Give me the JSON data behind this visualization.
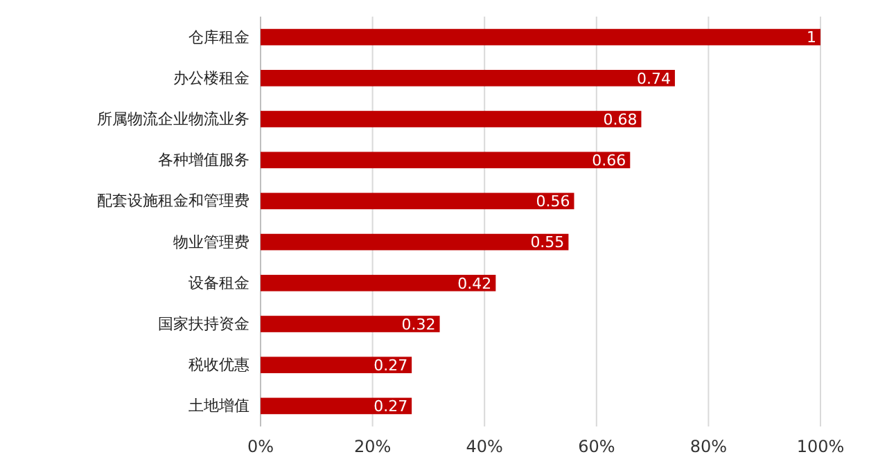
{
  "chart_data": {
    "type": "bar",
    "orientation": "horizontal",
    "categories": [
      "仓库租金",
      "办公楼租金",
      "所属物流企业物流业务",
      "各种增值服务",
      "配套设施租金和管理费",
      "物业管理费",
      "设备租金",
      "国家扶持资金",
      "税收优惠",
      "土地增值"
    ],
    "values": [
      1,
      0.74,
      0.68,
      0.66,
      0.56,
      0.55,
      0.42,
      0.32,
      0.27,
      0.27
    ],
    "color": "#c00000",
    "xlim": [
      0,
      1
    ],
    "xticks": [
      {
        "value": 0,
        "label": "0%"
      },
      {
        "value": 0.2,
        "label": "20%"
      },
      {
        "value": 0.4,
        "label": "40%"
      },
      {
        "value": 0.6,
        "label": "60%"
      },
      {
        "value": 0.8,
        "label": "80%"
      },
      {
        "value": 1,
        "label": "100%"
      }
    ],
    "grid": "x",
    "data_labels": true
  }
}
